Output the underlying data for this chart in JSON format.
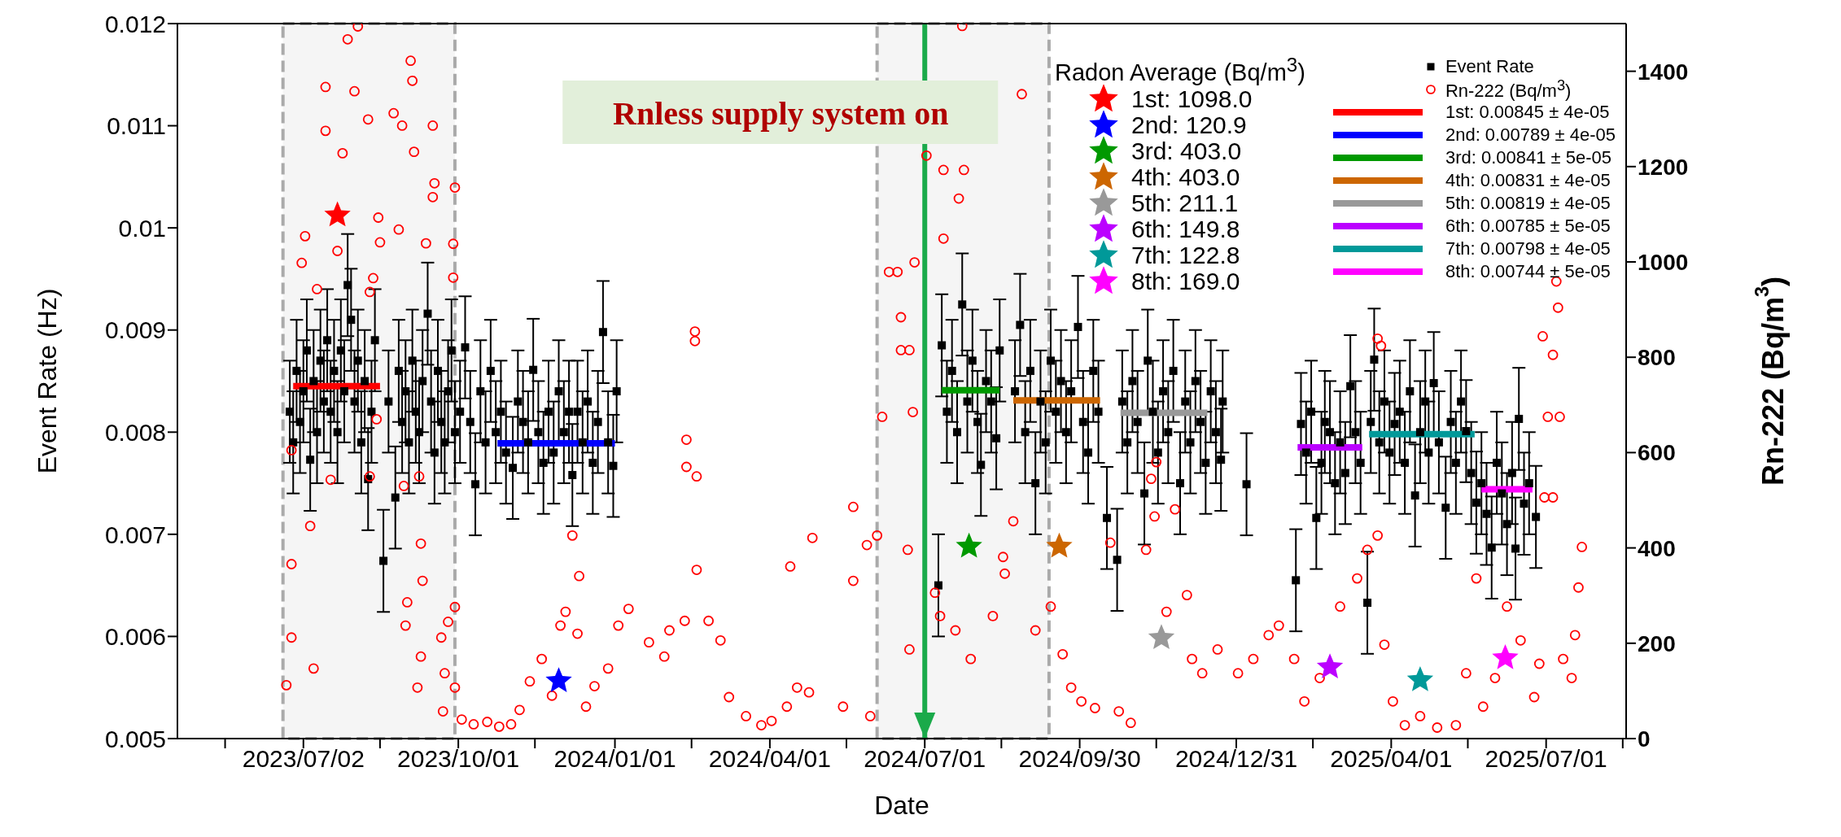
{
  "chart_data": {
    "type": "scatter",
    "xlabel": "Date",
    "ylabel": "Event Rate (Hz)",
    "y2label": "Rn-222 (Bq/m$^{3}$)",
    "legend_title": "Radon Average (Bq/m$^{3}$)",
    "legend": "top right",
    "xlim": [
      "2023-04-19",
      "2025-08-17"
    ],
    "xticks": [
      {
        "value": "2023-05-17",
        "label": null
      },
      {
        "value": "2023-07-02",
        "label": "2023/07/02"
      },
      {
        "value": "2023-08-16",
        "label": null
      },
      {
        "value": "2023-10-01",
        "label": "2023/10/01"
      },
      {
        "value": "2023-11-15",
        "label": null
      },
      {
        "value": "2024-01-01",
        "label": "2024/01/01"
      },
      {
        "value": "2024-02-15",
        "label": null
      },
      {
        "value": "2024-04-01",
        "label": "2024/04/01"
      },
      {
        "value": "2024-05-16",
        "label": null
      },
      {
        "value": "2024-07-01",
        "label": "2024/07/01"
      },
      {
        "value": "2024-08-15",
        "label": null
      },
      {
        "value": "2024-09-30",
        "label": "2024/09/30"
      },
      {
        "value": "2024-11-14",
        "label": null
      },
      {
        "value": "2024-12-31",
        "label": "2024/12/31"
      },
      {
        "value": "2025-02-14",
        "label": null
      },
      {
        "value": "2025-04-01",
        "label": "2025/04/01"
      },
      {
        "value": "2025-05-16",
        "label": null
      },
      {
        "value": "2025-07-01",
        "label": "2025/07/01"
      },
      {
        "value": "2025-08-15",
        "label": null
      }
    ],
    "ylim": [
      0.005,
      0.012
    ],
    "yticks": [
      0.005,
      0.006,
      0.007,
      0.008,
      0.009,
      0.01,
      0.011,
      0.012
    ],
    "y2lim": [
      0,
      1500
    ],
    "y2ticks": [
      0,
      200,
      400,
      600,
      800,
      1000,
      1200,
      1400
    ],
    "bands": [
      {
        "axis": "x",
        "from": "2023-06-20",
        "to": "2023-09-29",
        "color": "#aaaaaa"
      },
      {
        "axis": "x",
        "from": "2024-06-03",
        "to": "2024-09-12",
        "color": "#aaaaaa"
      }
    ],
    "ref_lines": [
      {
        "axis": "x",
        "value": "2024-07-01",
        "label": "Rnless supply system on",
        "color": "#1aaa4a"
      }
    ],
    "series": [
      {
        "name": "Event Rate",
        "marker": "square",
        "color": "#000000",
        "x": [
          "2023-06-24",
          "2023-06-26",
          "2023-06-28",
          "2023-06-30",
          "2023-07-02",
          "2023-07-04",
          "2023-07-06",
          "2023-07-08",
          "2023-07-10",
          "2023-07-12",
          "2023-07-14",
          "2023-07-16",
          "2023-07-18",
          "2023-07-20",
          "2023-07-22",
          "2023-07-24",
          "2023-07-26",
          "2023-07-28",
          "2023-07-30",
          "2023-08-01",
          "2023-08-03",
          "2023-08-05",
          "2023-08-07",
          "2023-08-09",
          "2023-08-11",
          "2023-08-13",
          "2023-08-18",
          "2023-08-21",
          "2023-08-25",
          "2023-08-27",
          "2023-08-29",
          "2023-08-31",
          "2023-09-02",
          "2023-09-04",
          "2023-09-06",
          "2023-09-08",
          "2023-09-10",
          "2023-09-13",
          "2023-09-15",
          "2023-09-17",
          "2023-09-19",
          "2023-09-21",
          "2023-09-23",
          "2023-09-25",
          "2023-09-27",
          "2023-09-29",
          "2023-10-02",
          "2023-10-05",
          "2023-10-08",
          "2023-10-11",
          "2023-10-14",
          "2023-10-17",
          "2023-10-20",
          "2023-10-23",
          "2023-10-26",
          "2023-10-29",
          "2023-11-02",
          "2023-11-05",
          "2023-11-08",
          "2023-11-11",
          "2023-11-14",
          "2023-11-17",
          "2023-11-20",
          "2023-11-23",
          "2023-11-26",
          "2023-11-29",
          "2023-12-02",
          "2023-12-05",
          "2023-12-07",
          "2023-12-10",
          "2023-12-13",
          "2023-12-16",
          "2023-12-19",
          "2023-12-22",
          "2023-12-25",
          "2023-12-28",
          "2023-12-31",
          "2024-01-02",
          "2024-07-09",
          "2024-07-11",
          "2024-07-14",
          "2024-07-17",
          "2024-07-20",
          "2024-07-23",
          "2024-07-26",
          "2024-07-29",
          "2024-08-01",
          "2024-08-03",
          "2024-08-06",
          "2024-08-09",
          "2024-08-12",
          "2024-08-14",
          "2024-08-23",
          "2024-08-26",
          "2024-08-29",
          "2024-09-01",
          "2024-09-04",
          "2024-09-07",
          "2024-09-10",
          "2024-09-13",
          "2024-09-16",
          "2024-09-19",
          "2024-09-22",
          "2024-09-25",
          "2024-09-29",
          "2024-10-02",
          "2024-10-05",
          "2024-10-08",
          "2024-10-11",
          "2024-10-16",
          "2024-10-22",
          "2024-10-25",
          "2024-10-28",
          "2024-10-31",
          "2024-11-03",
          "2024-11-07",
          "2024-11-09",
          "2024-11-12",
          "2024-11-15",
          "2024-11-18",
          "2024-11-21",
          "2024-11-24",
          "2024-11-28",
          "2024-12-01",
          "2024-12-04",
          "2024-12-07",
          "2024-12-10",
          "2024-12-13",
          "2024-12-16",
          "2024-12-19",
          "2024-12-22",
          "2024-12-23",
          "2025-01-06",
          "2025-02-04",
          "2025-02-07",
          "2025-02-10",
          "2025-02-13",
          "2025-02-16",
          "2025-02-19",
          "2025-02-21",
          "2025-02-24",
          "2025-02-27",
          "2025-03-02",
          "2025-03-05",
          "2025-03-08",
          "2025-03-11",
          "2025-03-14",
          "2025-03-18",
          "2025-03-20",
          "2025-03-22",
          "2025-03-25",
          "2025-03-28",
          "2025-03-31",
          "2025-04-03",
          "2025-04-06",
          "2025-04-09",
          "2025-04-12",
          "2025-04-15",
          "2025-04-18",
          "2025-04-21",
          "2025-04-23",
          "2025-04-26",
          "2025-04-29",
          "2025-05-03",
          "2025-05-06",
          "2025-05-09",
          "2025-05-12",
          "2025-05-15",
          "2025-05-18",
          "2025-05-21",
          "2025-05-24",
          "2025-05-27",
          "2025-05-30",
          "2025-06-02",
          "2025-06-05",
          "2025-06-08",
          "2025-06-11",
          "2025-06-13",
          "2025-06-15",
          "2025-06-18",
          "2025-06-21",
          "2025-06-25"
        ],
        "values": [
          0.0082,
          0.0079,
          0.0086,
          0.0081,
          0.0084,
          0.0088,
          0.00773,
          0.0085,
          0.008,
          0.0087,
          0.0083,
          0.0089,
          0.0082,
          0.0086,
          0.008,
          0.0088,
          0.0084,
          0.00944,
          0.0091,
          0.0083,
          0.0087,
          0.0079,
          0.0085,
          0.00754,
          0.0082,
          0.0089,
          0.00674,
          0.0083,
          0.00736,
          0.0086,
          0.0081,
          0.0084,
          0.0079,
          0.0087,
          0.0082,
          0.008,
          0.0085,
          0.00916,
          0.0083,
          0.0078,
          0.0086,
          0.0081,
          0.0079,
          0.0084,
          0.0088,
          0.008,
          0.0082,
          0.00883,
          0.0081,
          0.00749,
          0.0084,
          0.0079,
          0.0086,
          0.008,
          0.0082,
          0.0078,
          0.00765,
          0.0083,
          0.0081,
          0.0079,
          0.00861,
          0.008,
          0.0077,
          0.0082,
          0.0078,
          0.0084,
          0.008,
          0.0082,
          0.00758,
          0.0082,
          0.0079,
          0.0083,
          0.0077,
          0.0081,
          0.00898,
          0.0079,
          0.00767,
          0.0084,
          0.0065,
          0.00885,
          0.0082,
          0.0086,
          0.008,
          0.00925,
          0.0083,
          0.0087,
          0.0081,
          0.00768,
          0.0085,
          0.0083,
          0.00794,
          0.0088,
          0.0084,
          0.00905,
          0.008,
          0.0086,
          0.0075,
          0.0083,
          0.0079,
          0.0087,
          0.0082,
          0.0085,
          0.008,
          0.0084,
          0.00903,
          0.0081,
          0.0078,
          0.0086,
          0.0082,
          0.00716,
          0.00675,
          0.0083,
          0.0079,
          0.0085,
          0.0081,
          0.0074,
          0.0087,
          0.0082,
          0.0078,
          0.0084,
          0.008,
          0.0086,
          0.0075,
          0.0083,
          0.0079,
          0.0085,
          0.0081,
          0.0077,
          0.0084,
          0.008,
          0.00773,
          0.0083,
          0.00749,
          0.00655,
          0.00808,
          0.0078,
          0.0082,
          0.00716,
          0.0077,
          0.0081,
          0.008,
          0.0075,
          0.0079,
          0.0076,
          0.00845,
          0.008,
          0.0077,
          0.00633,
          0.0081,
          0.00871,
          0.0079,
          0.0083,
          0.0078,
          0.00808,
          0.0082,
          0.0077,
          0.0084,
          0.00738,
          0.008,
          0.0083,
          0.0078,
          0.00848,
          0.0079,
          0.00726,
          0.0081,
          0.0077,
          0.0083,
          0.00801,
          0.0076,
          0.00731,
          0.0075,
          0.0072,
          0.00687,
          0.0077,
          0.0074,
          0.0071,
          0.0076,
          0.00686,
          0.00813,
          0.0073,
          0.0075,
          0.00717
        ],
        "errors": [
          0.0005,
          0.0005,
          0.0005,
          0.0005,
          0.0005,
          0.0005,
          0.0005,
          0.0005,
          0.0005,
          0.0005,
          0.0005,
          0.0005,
          0.0005,
          0.0005,
          0.0005,
          0.0005,
          0.0005,
          0.0005,
          0.0005,
          0.0005,
          0.0005,
          0.0005,
          0.0005,
          0.0005,
          0.0005,
          0.0005,
          0.0005,
          0.0005,
          0.0005,
          0.0005,
          0.0005,
          0.0005,
          0.0005,
          0.0005,
          0.0005,
          0.0005,
          0.0005,
          0.0005,
          0.0005,
          0.0005,
          0.0005,
          0.0005,
          0.0005,
          0.0005,
          0.0005,
          0.0005,
          0.0005,
          0.0005,
          0.0005,
          0.0005,
          0.0005,
          0.0005,
          0.0005,
          0.0005,
          0.0005,
          0.0005,
          0.0005,
          0.0005,
          0.0005,
          0.0005,
          0.0005,
          0.0005,
          0.0005,
          0.0005,
          0.0005,
          0.0005,
          0.0005,
          0.0005,
          0.0005,
          0.0005,
          0.0005,
          0.0005,
          0.0005,
          0.0005,
          0.0005,
          0.0005,
          0.0005,
          0.0005,
          0.0005,
          0.0005,
          0.0005,
          0.0005,
          0.0005,
          0.0005,
          0.0005,
          0.0005,
          0.0005,
          0.0005,
          0.0005,
          0.0005,
          0.0005,
          0.0005,
          0.0005,
          0.0005,
          0.0005,
          0.0005,
          0.0005,
          0.0005,
          0.0005,
          0.0005,
          0.0005,
          0.0005,
          0.0005,
          0.0005,
          0.0005,
          0.0005,
          0.0005,
          0.0005,
          0.0005,
          0.0005,
          0.0005,
          0.0005,
          0.0005,
          0.0005,
          0.0005,
          0.0005,
          0.0005,
          0.0005,
          0.0005,
          0.0005,
          0.0005,
          0.0005,
          0.0005,
          0.0005,
          0.0005,
          0.0005,
          0.0005,
          0.0005,
          0.0005,
          0.0005,
          0.0005,
          0.0005,
          0.0005,
          0.0005,
          0.0005,
          0.0005,
          0.0005,
          0.0005,
          0.0005,
          0.0005,
          0.0005,
          0.0005,
          0.0005,
          0.0005,
          0.0005,
          0.0005,
          0.0005,
          0.0005,
          0.0005,
          0.0005,
          0.0005,
          0.0005,
          0.0005,
          0.0005,
          0.0005,
          0.0005,
          0.0005,
          0.0005,
          0.0005,
          0.0005,
          0.0005,
          0.0005,
          0.0005,
          0.0005,
          0.0005,
          0.0005,
          0.0005,
          0.0005,
          0.0005,
          0.0005,
          0.0005,
          0.0005,
          0.0005,
          0.0005,
          0.0005,
          0.0005,
          0.0005,
          0.0005,
          0.0005,
          0.0005,
          0.0005,
          0.0005
        ]
      },
      {
        "name": "Rn-222 (Bq/m$^{3}$)",
        "marker": "circle",
        "color": "#ff0000",
        "axis": "y2",
        "x": [
          "2023-06-22",
          "2023-06-25",
          "2023-06-25",
          "2023-06-25",
          "2023-07-01",
          "2023-07-03",
          "2023-07-06",
          "2023-07-08",
          "2023-07-10",
          "2023-07-15",
          "2023-07-15",
          "2023-07-18",
          "2023-07-22",
          "2023-07-25",
          "2023-07-28",
          "2023-08-01",
          "2023-08-03",
          "2023-08-09",
          "2023-08-10",
          "2023-08-10",
          "2023-08-12",
          "2023-08-14",
          "2023-08-15",
          "2023-08-16",
          "2023-08-24",
          "2023-08-27",
          "2023-08-29",
          "2023-08-30",
          "2023-08-31",
          "2023-09-01",
          "2023-09-03",
          "2023-09-04",
          "2023-09-05",
          "2023-09-07",
          "2023-09-08",
          "2023-09-09",
          "2023-09-09",
          "2023-09-10",
          "2023-09-12",
          "2023-09-16",
          "2023-09-17",
          "2023-09-16",
          "2023-09-21",
          "2023-09-22",
          "2023-09-23",
          "2023-09-25",
          "2023-09-28",
          "2023-09-28",
          "2023-09-29",
          "2023-09-29",
          "2023-09-29",
          "2023-10-03",
          "2023-10-10",
          "2023-10-18",
          "2023-10-25",
          "2023-11-01",
          "2023-11-06",
          "2023-11-12",
          "2023-11-19",
          "2023-11-25",
          "2023-11-30",
          "2023-12-03",
          "2023-12-07",
          "2023-12-11",
          "2023-12-10",
          "2023-12-15",
          "2023-12-20",
          "2023-12-28",
          "2024-01-03",
          "2024-01-09",
          "2024-01-21",
          "2024-01-30",
          "2024-02-02",
          "2024-02-11",
          "2024-02-17",
          "2024-02-17",
          "2024-02-12",
          "2024-02-12",
          "2024-02-18",
          "2024-02-18",
          "2024-02-25",
          "2024-03-03",
          "2024-03-08",
          "2024-03-18",
          "2024-03-27",
          "2024-04-02",
          "2024-04-11",
          "2024-04-17",
          "2024-04-13",
          "2024-04-26",
          "2024-04-24",
          "2024-05-14",
          "2024-05-20",
          "2024-05-20",
          "2024-05-28",
          "2024-05-30",
          "2024-06-03",
          "2024-06-06",
          "2024-06-10",
          "2024-06-17",
          "2024-06-17",
          "2024-06-21",
          "2024-06-22",
          "2024-06-24",
          "2024-06-15",
          "2024-06-22",
          "2024-06-25",
          "2024-07-02",
          "2024-07-12",
          "2024-07-24",
          "2024-07-21",
          "2024-07-12",
          "2024-07-23",
          "2024-08-27",
          "2024-07-07",
          "2024-07-10",
          "2024-07-19",
          "2024-07-28",
          "2024-08-10",
          "2024-08-17",
          "2024-08-22",
          "2024-08-16",
          "2024-09-04",
          "2024-09-13",
          "2024-09-20",
          "2024-09-25",
          "2024-10-01",
          "2024-10-09",
          "2024-10-18",
          "2024-10-23",
          "2024-10-30",
          "2024-11-08",
          "2024-11-13",
          "2024-11-20",
          "2024-12-02",
          "2024-12-05",
          "2024-12-11",
          "2024-12-20",
          "2025-01-01",
          "2025-01-10",
          "2025-01-19",
          "2025-01-25",
          "2025-02-03",
          "2025-02-09",
          "2025-02-18",
          "2025-03-02",
          "2025-03-12",
          "2025-03-18",
          "2025-03-24",
          "2025-03-24",
          "2025-03-28",
          "2025-04-02",
          "2025-04-09",
          "2025-04-18",
          "2025-04-28",
          "2025-05-09",
          "2025-05-15",
          "2025-05-21",
          "2025-05-25",
          "2025-06-01",
          "2025-06-08",
          "2025-06-16",
          "2025-06-24",
          "2025-06-27",
          "2025-06-30",
          "2025-07-02",
          "2025-07-05",
          "2025-07-07",
          "2025-07-08",
          "2025-07-09",
          "2025-07-05",
          "2025-07-11",
          "2025-07-16",
          "2025-07-20",
          "2025-07-22",
          "2025-07-18",
          "2025-06-29",
          "2025-03-26",
          "2024-11-14",
          "2024-11-11",
          "2024-11-25"
        ],
        "values": [
          112,
          212,
          366,
          605,
          998,
          1054,
          446,
          147,
          943,
          1367,
          1275,
          543,
          1023,
          1228,
          1467,
          1358,
          1494,
          1299,
          937,
          550,
          966,
          670,
          1093,
          1041,
          1312,
          1068,
          1286,
          530,
          237,
          286,
          1422,
          1380,
          1231,
          107,
          550,
          409,
          172,
          331,
          1039,
          1286,
          1165,
          1136,
          212,
          57,
          137,
          245,
          967,
          1038,
          1156,
          276,
          107,
          40,
          30,
          35,
          25,
          30,
          60,
          120,
          167,
          90,
          237,
          266,
          426,
          341,
          220,
          67,
          110,
          147,
          237,
          272,
          202,
          172,
          227,
          247,
          854,
          834,
          627,
          570,
          550,
          354,
          247,
          206,
          87,
          47,
          28,
          37,
          67,
          107,
          361,
          421,
          97,
          67,
          486,
          331,
          406,
          47,
          426,
          675,
          979,
          884,
          815,
          396,
          187,
          685,
          979,
          815,
          999,
          1223,
          1193,
          1193,
          1133,
          1049,
          1495,
          1352,
          306,
          257,
          227,
          167,
          257,
          346,
          456,
          381,
          227,
          277,
          177,
          107,
          78,
          64,
          411,
          57,
          33,
          396,
          466,
          266,
          301,
          167,
          137,
          187,
          137,
          167,
          217,
          237,
          167,
          78,
          127,
          277,
          336,
          396,
          426,
          839,
          197,
          78,
          28,
          47,
          23,
          28,
          137,
          336,
          67,
          127,
          277,
          206,
          87,
          157,
          506,
          675,
          805,
          959,
          904,
          675,
          506,
          167,
          127,
          317,
          402,
          217,
          844,
          824,
          580,
          545,
          481
        ]
      },
      {
        "name": "1st: 0.00845 ± 4e-05",
        "type": "line",
        "color": "#ff0000",
        "x": [
          "2023-06-26",
          "2023-08-16"
        ],
        "values": [
          0.00845,
          0.00845
        ]
      },
      {
        "name": "2nd: 0.00789 ± 4e-05",
        "type": "line",
        "color": "#0000ff",
        "x": [
          "2023-10-24",
          "2024-01-01"
        ],
        "values": [
          0.00789,
          0.00789
        ]
      },
      {
        "name": "3rd: 0.00841 ± 5e-05",
        "type": "line",
        "color": "#009900",
        "x": [
          "2024-07-11",
          "2024-08-14"
        ],
        "values": [
          0.00841,
          0.00841
        ]
      },
      {
        "name": "4th: 0.00831 ± 4e-05",
        "type": "line",
        "color": "#cc6600",
        "x": [
          "2024-08-22",
          "2024-10-12"
        ],
        "values": [
          0.00831,
          0.00831
        ]
      },
      {
        "name": "5th: 0.00819 ± 4e-05",
        "type": "line",
        "color": "#999999",
        "x": [
          "2024-10-24",
          "2024-12-14"
        ],
        "values": [
          0.00819,
          0.00819
        ]
      },
      {
        "name": "6th: 0.00785 ± 5e-05",
        "type": "line",
        "color": "#bb00ff",
        "x": [
          "2025-02-05",
          "2025-03-15"
        ],
        "values": [
          0.00785,
          0.00785
        ]
      },
      {
        "name": "7th: 0.00798 ± 4e-05",
        "type": "line",
        "color": "#009999",
        "x": [
          "2025-03-19",
          "2025-05-20"
        ],
        "values": [
          0.00798,
          0.00798
        ]
      },
      {
        "name": "8th: 0.00744 ± 5e-05",
        "type": "line",
        "color": "#ff00ff",
        "x": [
          "2025-05-24",
          "2025-06-23"
        ],
        "values": [
          0.00744,
          0.00744
        ]
      },
      {
        "name": "1st: 1098.0",
        "type": "scatter",
        "marker": "star",
        "axis": "y2",
        "color": "#ff0000",
        "x": [
          "2023-07-22"
        ],
        "values": [
          1098
        ]
      },
      {
        "name": "2nd: 120.9",
        "type": "scatter",
        "marker": "star",
        "axis": "y2",
        "color": "#0000ff",
        "x": [
          "2023-11-29"
        ],
        "values": [
          120.9
        ]
      },
      {
        "name": "3rd: 403.0",
        "type": "scatter",
        "marker": "star",
        "axis": "y2",
        "color": "#009900",
        "x": [
          "2024-07-27"
        ],
        "values": [
          403
        ]
      },
      {
        "name": "4th: 403.0",
        "type": "scatter",
        "marker": "star",
        "axis": "y2",
        "color": "#cc6600",
        "x": [
          "2024-09-18"
        ],
        "values": [
          403
        ]
      },
      {
        "name": "5th: 211.1",
        "type": "scatter",
        "marker": "star",
        "axis": "y2",
        "color": "#999999",
        "x": [
          "2024-11-17"
        ],
        "values": [
          211.1
        ]
      },
      {
        "name": "6th: 149.8",
        "type": "scatter",
        "marker": "star",
        "axis": "y2",
        "color": "#bb00ff",
        "x": [
          "2025-02-24"
        ],
        "values": [
          149.8
        ]
      },
      {
        "name": "7th: 122.8",
        "type": "scatter",
        "marker": "star",
        "axis": "y2",
        "color": "#009999",
        "x": [
          "2025-04-18"
        ],
        "values": [
          122.8
        ]
      },
      {
        "name": "8th: 169.0",
        "type": "scatter",
        "marker": "star",
        "axis": "y2",
        "color": "#ff00ff",
        "x": [
          "2025-06-07"
        ],
        "values": [
          169
        ]
      }
    ]
  }
}
